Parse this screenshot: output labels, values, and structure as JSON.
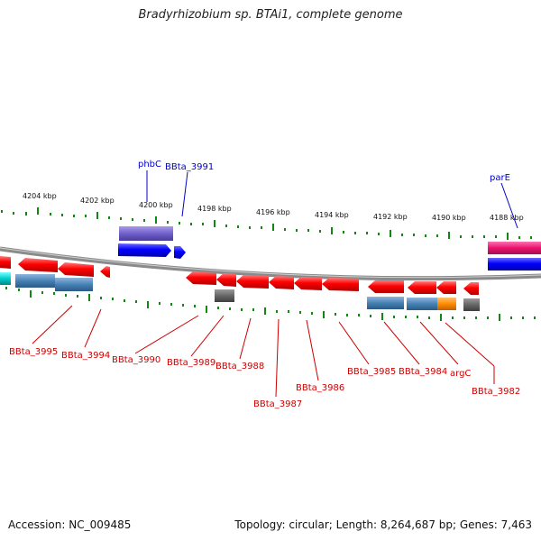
{
  "title": "Bradyrhizobium sp. BTAi1, complete genome",
  "footer": {
    "accession": "Accession: NC_009485",
    "summary": "Topology: circular; Length: 8,264,687 bp; Genes: 7,463"
  },
  "colors": {
    "axis_tick": "#118811",
    "backbone": "#8a8a8a",
    "top_label": "#0000cc",
    "bottom_label": "#cc0000"
  },
  "ruler": {
    "labels": [
      "4204 kbp",
      "4202 kbp",
      "4200 kbp",
      "4198 kbp",
      "4196 kbp",
      "4194 kbp",
      "4192 kbp",
      "4190 kbp",
      "4188 kbp"
    ]
  },
  "top_labels": [
    "phbC",
    "BBta_3991",
    "parE"
  ],
  "bottom_labels": [
    "BBta_3995",
    "BBta_3994",
    "BBta_3990",
    "BBta_3989",
    "BBta_3988",
    "BBta_3987",
    "BBta_3986",
    "BBta_3985",
    "BBta_3984",
    "argC",
    "BBta_3982"
  ]
}
